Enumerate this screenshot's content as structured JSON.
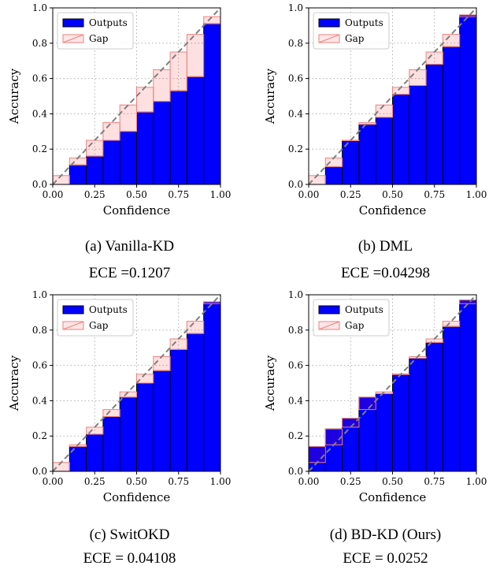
{
  "chart_data": [
    {
      "type": "bar",
      "caption": "(a) Vanilla-KD",
      "metric": "ECE =0.1207",
      "xlabel": "Confidence",
      "ylabel": "Accuracy",
      "xlim": [
        0,
        1
      ],
      "ylim": [
        0,
        1
      ],
      "xticks": [
        "0.00",
        "0.25",
        "0.50",
        "0.75",
        "1.00"
      ],
      "yticks": [
        "0.0",
        "0.2",
        "0.4",
        "0.6",
        "0.8",
        "1.0"
      ],
      "grid": true,
      "legend": {
        "position": "top-left",
        "entries": [
          "Outputs",
          "Gap"
        ]
      },
      "bin_edges": [
        0,
        0.1,
        0.2,
        0.3,
        0.4,
        0.5,
        0.6,
        0.7,
        0.8,
        0.9,
        1.0
      ],
      "series": [
        {
          "name": "Outputs",
          "values": [
            0,
            0.11,
            0.16,
            0.25,
            0.3,
            0.41,
            0.47,
            0.53,
            0.61,
            0.91
          ]
        },
        {
          "name": "Gap",
          "values": [
            0.05,
            0.15,
            0.25,
            0.35,
            0.45,
            0.55,
            0.65,
            0.75,
            0.85,
            0.95
          ]
        }
      ]
    },
    {
      "type": "bar",
      "caption": "(b) DML",
      "metric": "ECE =0.04298",
      "xlabel": "Confidence",
      "ylabel": "Accuracy",
      "xlim": [
        0,
        1
      ],
      "ylim": [
        0,
        1
      ],
      "xticks": [
        "0.00",
        "0.25",
        "0.50",
        "0.75",
        "1.00"
      ],
      "yticks": [
        "0.0",
        "0.2",
        "0.4",
        "0.6",
        "0.8",
        "1.0"
      ],
      "grid": true,
      "legend": {
        "position": "top-left",
        "entries": [
          "Outputs",
          "Gap"
        ]
      },
      "bin_edges": [
        0,
        0.1,
        0.2,
        0.3,
        0.4,
        0.5,
        0.6,
        0.7,
        0.8,
        0.9,
        1.0
      ],
      "series": [
        {
          "name": "Outputs",
          "values": [
            0,
            0.1,
            0.25,
            0.34,
            0.38,
            0.51,
            0.56,
            0.68,
            0.78,
            0.96
          ]
        },
        {
          "name": "Gap",
          "values": [
            0.05,
            0.15,
            0.25,
            0.35,
            0.45,
            0.55,
            0.65,
            0.75,
            0.85,
            0.95
          ]
        }
      ]
    },
    {
      "type": "bar",
      "caption": "(c) SwitOKD",
      "metric": "ECE = 0.04108",
      "xlabel": "Confidence",
      "ylabel": "Accuracy",
      "xlim": [
        0,
        1
      ],
      "ylim": [
        0,
        1
      ],
      "xticks": [
        "0.00",
        "0.25",
        "0.50",
        "0.75",
        "1.00"
      ],
      "yticks": [
        "0.0",
        "0.2",
        "0.4",
        "0.6",
        "0.8",
        "1.0"
      ],
      "grid": true,
      "legend": {
        "position": "top-left",
        "entries": [
          "Outputs",
          "Gap"
        ]
      },
      "bin_edges": [
        0,
        0.1,
        0.2,
        0.3,
        0.4,
        0.5,
        0.6,
        0.7,
        0.8,
        0.9,
        1.0
      ],
      "series": [
        {
          "name": "Outputs",
          "values": [
            0,
            0.14,
            0.21,
            0.31,
            0.42,
            0.5,
            0.57,
            0.69,
            0.78,
            0.96
          ]
        },
        {
          "name": "Gap",
          "values": [
            0.05,
            0.15,
            0.25,
            0.35,
            0.45,
            0.55,
            0.65,
            0.75,
            0.85,
            0.95
          ]
        }
      ]
    },
    {
      "type": "bar",
      "caption": "(d) BD-KD (Ours)",
      "metric": "ECE = 0.0252",
      "xlabel": "Confidence",
      "ylabel": "Accuracy",
      "xlim": [
        0,
        1
      ],
      "ylim": [
        0,
        1
      ],
      "xticks": [
        "0.00",
        "0.25",
        "0.50",
        "0.75",
        "1.00"
      ],
      "yticks": [
        "0.0",
        "0.2",
        "0.4",
        "0.6",
        "0.8",
        "1.0"
      ],
      "grid": true,
      "legend": {
        "position": "top-left",
        "entries": [
          "Outputs",
          "Gap"
        ]
      },
      "bin_edges": [
        0,
        0.1,
        0.2,
        0.3,
        0.4,
        0.5,
        0.6,
        0.7,
        0.8,
        0.9,
        1.0
      ],
      "series": [
        {
          "name": "Outputs",
          "values": [
            0.14,
            0.24,
            0.3,
            0.42,
            0.44,
            0.55,
            0.64,
            0.73,
            0.82,
            0.97
          ]
        },
        {
          "name": "Gap",
          "values": [
            0.05,
            0.15,
            0.25,
            0.35,
            0.45,
            0.55,
            0.65,
            0.75,
            0.85,
            0.95
          ]
        }
      ]
    }
  ],
  "colors": {
    "outputs_fill": "#0000ff",
    "outputs_edge": "#000000",
    "gap_fill": "#ffe6e6",
    "gap_edge": "#f08080",
    "diagonal": "#808080",
    "grid": "#b0b0b0"
  }
}
